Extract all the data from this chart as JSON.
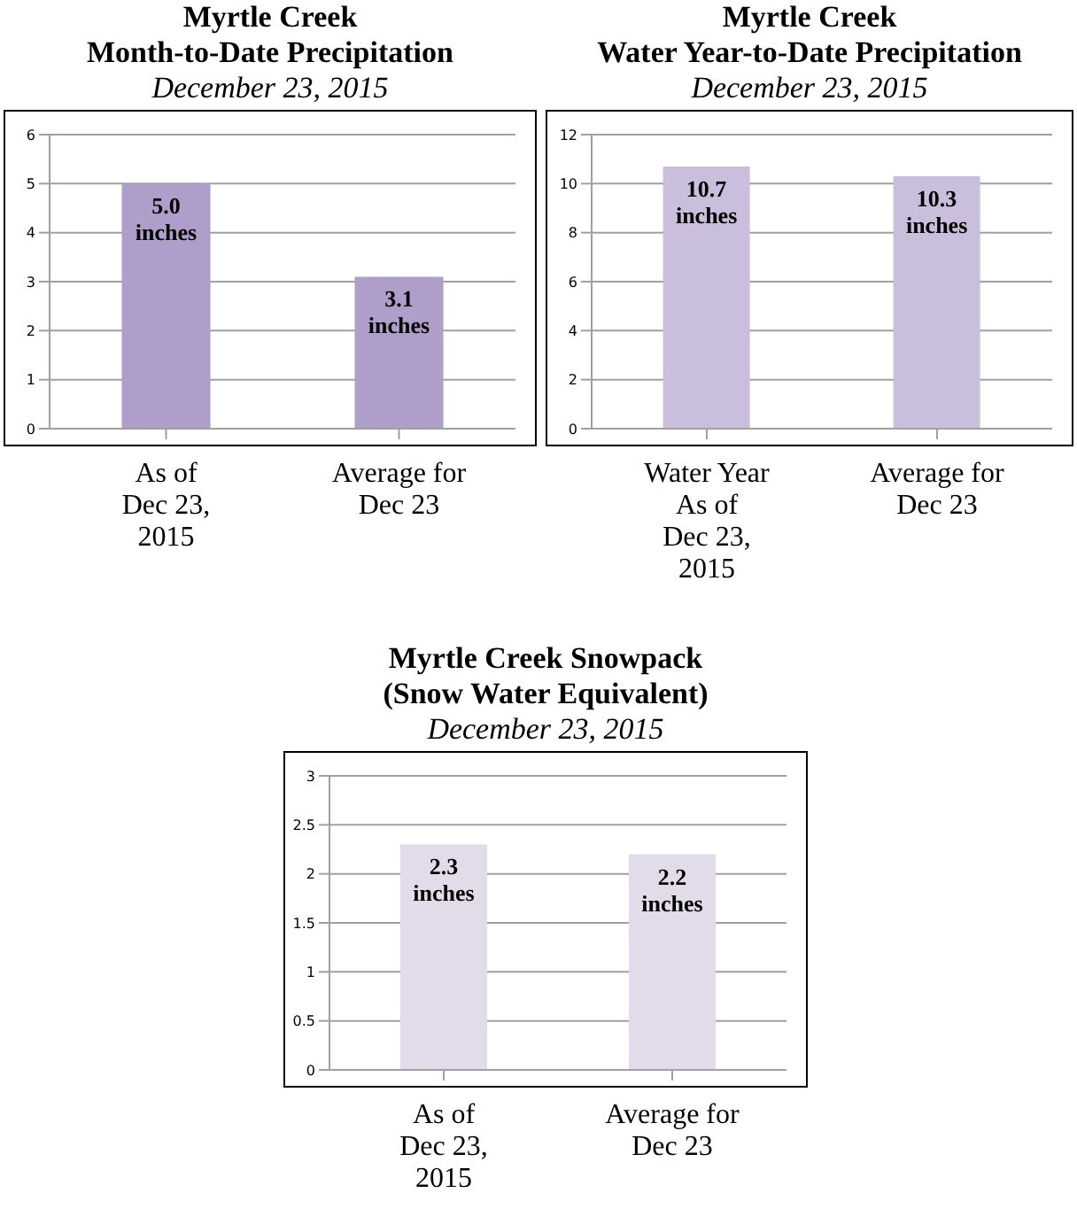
{
  "chart_data": [
    {
      "type": "bar",
      "title": "Myrtle Creek\nMonth-to-Date Precipitation",
      "subtitle": "December 23, 2015",
      "categories": [
        "As of\nDec 23,\n2015",
        "Average for\nDec 23"
      ],
      "values": [
        5.0,
        3.1
      ],
      "value_labels": [
        "5.0 inches",
        "3.1 inches"
      ],
      "color": "#ae9ec9",
      "ylim": [
        0,
        6
      ],
      "yticks": [
        0,
        1,
        2,
        3,
        4,
        5,
        6
      ],
      "grid": "y"
    },
    {
      "type": "bar",
      "title": "Myrtle Creek\nWater Year-to-Date Precipitation",
      "subtitle": "December 23, 2015",
      "categories": [
        "Water Year\nAs of\nDec 23,\n2015",
        "Average for\nDec 23"
      ],
      "values": [
        10.7,
        10.3
      ],
      "value_labels": [
        "10.7 inches",
        "10.3 inches"
      ],
      "color": "#c9bedc",
      "ylim": [
        0,
        12
      ],
      "yticks": [
        0,
        2,
        4,
        6,
        8,
        10,
        12
      ],
      "grid": "y"
    },
    {
      "type": "bar",
      "title": "Myrtle Creek Snowpack\n(Snow Water Equivalent)",
      "subtitle": "December 23, 2015",
      "categories": [
        "As of\nDec 23,\n2015",
        "Average for\nDec 23"
      ],
      "values": [
        2.3,
        2.2
      ],
      "value_labels": [
        "2.3 inches",
        "2.2 inches"
      ],
      "color": "#e2dcea",
      "ylim": [
        0,
        3
      ],
      "yticks": [
        0,
        0.5,
        1,
        1.5,
        2,
        2.5,
        3
      ],
      "grid": "y"
    }
  ]
}
